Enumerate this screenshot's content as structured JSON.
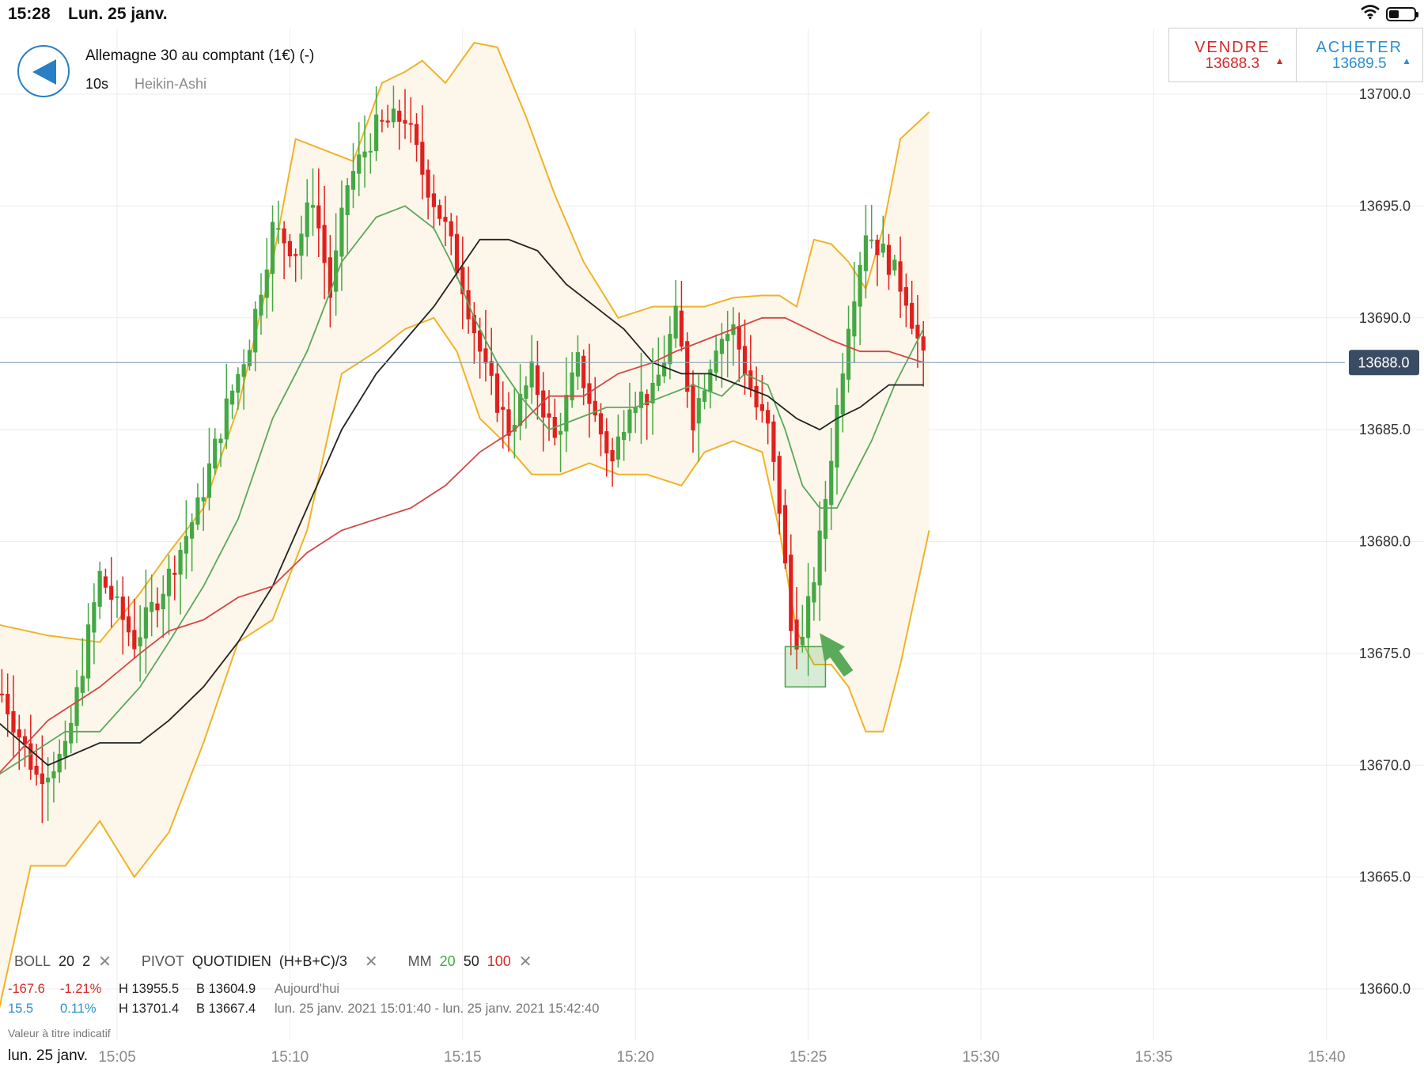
{
  "status_bar": {
    "time": "15:28",
    "date": "Lun. 25 janv.",
    "icons": [
      "wifi-icon",
      "battery-icon"
    ]
  },
  "instrument": {
    "name": "Allemagne 30 au comptant (1€) (-)",
    "interval": "10s",
    "chart_type": "Heikin-Ashi"
  },
  "trade": {
    "sell_label": "VENDRE",
    "sell_price": "13688.3",
    "sell_arrow": "▲",
    "buy_label": "ACHETER",
    "buy_price": "13689.5",
    "buy_arrow": "▲"
  },
  "current_price_label": "13688.0",
  "indicators": {
    "boll": {
      "name": "BOLL",
      "period": "20",
      "dev": "2"
    },
    "pivot": {
      "name": "PIVOT",
      "mode": "QUOTIDIEN",
      "formula": "(H+B+C)/3"
    },
    "mm": {
      "name": "MM",
      "p1": "20",
      "p2": "50",
      "p3": "100"
    },
    "close_glyph": "✕"
  },
  "stats": {
    "day": {
      "change": "-167.6",
      "pct": "-1.21%",
      "high": "H 13955.5",
      "low": "B 13604.9",
      "period": "Aujourd'hui"
    },
    "range": {
      "change": "15.5",
      "pct": "0.11%",
      "high": "H 13701.4",
      "low": "B 13667.4",
      "period": "lun. 25 janv. 2021 15:01:40 - lun. 25 janv. 2021 15:42:40"
    }
  },
  "disclaimer": "Valeur à titre indicatif",
  "current_date_label": "lun. 25 janv.",
  "colors": {
    "up": "#44a844",
    "down": "#e0201e",
    "boll": "#f0b328",
    "boll_fill": "#fdf6ea",
    "mm20": "#5aa85a",
    "mm50": "#222222",
    "mm100": "#d64545",
    "price_line": "#8fa3b5",
    "accent": "#2a7fc4"
  },
  "chart_data": {
    "type": "candlestick",
    "subtype": "Heikin-Ashi",
    "x_ticks": [
      "15:05",
      "15:10",
      "15:15",
      "15:20",
      "15:25",
      "15:30",
      "15:35",
      "15:40"
    ],
    "y_ticks": [
      "13700.0",
      "13695.0",
      "13690.0",
      "13685.0",
      "13680.0",
      "13675.0",
      "13670.0",
      "13665.0",
      "13660.0"
    ],
    "ylim": [
      13657.9,
      13702.3
    ],
    "xlim": [
      "15:01:30",
      "15:42:40"
    ],
    "grid": true,
    "current_price": 13688.0,
    "trend_close": [
      [
        "15:01:40",
        13673.2
      ],
      [
        "15:02:40",
        13669.5
      ],
      [
        "15:03:30",
        13670.5
      ],
      [
        "15:04:30",
        13678.5
      ],
      [
        "15:05:30",
        13675.5
      ],
      [
        "15:06:30",
        13678.5
      ],
      [
        "15:07:20",
        13681.5
      ],
      [
        "15:08:10",
        13686.0
      ],
      [
        "15:08:50",
        13689.0
      ],
      [
        "15:09:30",
        13694.0
      ],
      [
        "15:10:10",
        13693.0
      ],
      [
        "15:10:40",
        13695.5
      ],
      [
        "15:11:10",
        13691.0
      ],
      [
        "15:11:40",
        13696.0
      ],
      [
        "15:12:30",
        13698.5
      ],
      [
        "15:13:20",
        13699.0
      ],
      [
        "15:13:50",
        13696.5
      ],
      [
        "15:14:30",
        13694.0
      ],
      [
        "15:15:00",
        13691.5
      ],
      [
        "15:15:40",
        13687.5
      ],
      [
        "15:16:20",
        13685.0
      ],
      [
        "15:17:00",
        13687.5
      ],
      [
        "15:17:40",
        13684.5
      ],
      [
        "15:18:20",
        13688.0
      ],
      [
        "15:18:50",
        13685.5
      ],
      [
        "15:19:20",
        13683.5
      ],
      [
        "15:19:50",
        13686.5
      ],
      [
        "15:20:30",
        13686.5
      ],
      [
        "15:21:10",
        13690.0
      ],
      [
        "15:21:40",
        13685.5
      ],
      [
        "15:22:20",
        13689.0
      ],
      [
        "15:22:50",
        13689.5
      ],
      [
        "15:23:30",
        13686.0
      ],
      [
        "15:23:50",
        13685.0
      ],
      [
        "15:24:10",
        13681.5
      ],
      [
        "15:24:30",
        13676.0
      ],
      [
        "15:24:50",
        13675.5
      ],
      [
        "15:25:20",
        13680.0
      ],
      [
        "15:25:50",
        13686.0
      ],
      [
        "15:26:10",
        13690.0
      ],
      [
        "15:26:40",
        13694.0
      ],
      [
        "15:27:20",
        13692.5
      ],
      [
        "15:27:50",
        13691.0
      ],
      [
        "15:28:20",
        13688.0
      ]
    ],
    "series": [
      {
        "name": "BOLL upper",
        "x": [
          "15:01:30",
          "15:03:00",
          "15:04:30",
          "15:05:40",
          "15:06:30",
          "15:07:30",
          "15:08:30",
          "15:09:30",
          "15:10:10",
          "15:11:00",
          "15:11:50",
          "15:12:40",
          "15:13:20",
          "15:13:50",
          "15:14:30",
          "15:15:20",
          "15:16:00",
          "15:16:50",
          "15:17:40",
          "15:18:30",
          "15:19:30",
          "15:20:30",
          "15:21:10",
          "15:22:00",
          "15:22:50",
          "15:23:40",
          "15:24:10",
          "15:24:40",
          "15:25:10",
          "15:25:40",
          "15:26:10",
          "15:26:40",
          "15:27:10",
          "15:27:40",
          "15:28:30"
        ],
        "values": [
          13676.3,
          13675.8,
          13675.5,
          13677.7,
          13679.5,
          13681.5,
          13686.0,
          13692.5,
          13698.0,
          13697.5,
          13697.0,
          13700.5,
          13701.0,
          13701.5,
          13700.5,
          13702.3,
          13702.1,
          13699.0,
          13695.5,
          13692.5,
          13690.0,
          13690.5,
          13690.5,
          13690.5,
          13690.9,
          13691.0,
          13691.0,
          13690.5,
          13693.5,
          13693.3,
          13692.5,
          13691.3,
          13694.0,
          13698.0,
          13699.2
        ]
      },
      {
        "name": "BOLL lower",
        "x": [
          "15:01:30",
          "15:02:30",
          "15:03:30",
          "15:04:30",
          "15:05:30",
          "15:06:30",
          "15:07:30",
          "15:08:30",
          "15:09:30",
          "15:10:30",
          "15:11:30",
          "15:12:30",
          "15:13:20",
          "15:14:10",
          "15:14:50",
          "15:15:30",
          "15:16:10",
          "15:17:00",
          "15:17:50",
          "15:18:40",
          "15:19:30",
          "15:20:20",
          "15:21:20",
          "15:22:00",
          "15:22:50",
          "15:23:40",
          "15:24:10",
          "15:24:40",
          "15:25:10",
          "15:25:40",
          "15:26:10",
          "15:26:40",
          "15:27:10",
          "15:27:40",
          "15:28:30"
        ],
        "values": [
          13658.5,
          13665.5,
          13665.5,
          13667.5,
          13665.0,
          13667.0,
          13671.0,
          13675.5,
          13676.5,
          13680.5,
          13687.5,
          13688.5,
          13689.5,
          13690.0,
          13688.5,
          13685.5,
          13684.5,
          13683.0,
          13683.0,
          13683.5,
          13683.0,
          13683.0,
          13682.5,
          13684.0,
          13684.5,
          13684.0,
          13680.5,
          13676.0,
          13674.5,
          13674.5,
          13673.5,
          13671.5,
          13671.5,
          13674.5,
          13680.5
        ]
      },
      {
        "name": "MM 20",
        "x": [
          "15:01:30",
          "15:02:30",
          "15:03:30",
          "15:04:30",
          "15:05:40",
          "15:06:30",
          "15:07:30",
          "15:08:30",
          "15:09:30",
          "15:10:30",
          "15:11:30",
          "15:12:30",
          "15:13:20",
          "15:14:10",
          "15:14:40",
          "15:15:20",
          "15:16:00",
          "15:16:40",
          "15:17:30",
          "15:18:20",
          "15:19:10",
          "15:20:00",
          "15:20:50",
          "15:21:40",
          "15:22:30",
          "15:23:10",
          "15:23:50",
          "15:24:20",
          "15:24:50",
          "15:25:20",
          "15:25:50",
          "15:26:20",
          "15:26:50",
          "15:27:30",
          "15:28:20"
        ],
        "values": [
          13669.5,
          13670.5,
          13671.5,
          13671.5,
          13673.5,
          13675.5,
          13678.0,
          13681.0,
          13685.5,
          13688.5,
          13692.5,
          13694.5,
          13695.0,
          13694.0,
          13692.5,
          13690.0,
          13688.0,
          13686.5,
          13685.0,
          13685.5,
          13686.0,
          13686.0,
          13686.5,
          13687.0,
          13686.5,
          13687.5,
          13687.0,
          13685.0,
          13682.5,
          13681.5,
          13681.5,
          13683.0,
          13684.5,
          13687.0,
          13689.5
        ]
      },
      {
        "name": "MM 50",
        "x": [
          "15:01:30",
          "15:03:00",
          "15:04:30",
          "15:05:40",
          "15:06:30",
          "15:07:30",
          "15:08:30",
          "15:09:30",
          "15:10:30",
          "15:11:30",
          "15:12:30",
          "15:13:20",
          "15:14:10",
          "15:14:50",
          "15:15:30",
          "15:16:20",
          "15:17:10",
          "15:18:00",
          "15:18:50",
          "15:19:40",
          "15:20:30",
          "15:21:20",
          "15:22:10",
          "15:23:00",
          "15:23:50",
          "15:24:40",
          "15:25:20",
          "15:25:50",
          "15:26:30",
          "15:27:20",
          "15:28:20"
        ],
        "values": [
          13672.0,
          13670.0,
          13671.0,
          13671.0,
          13672.0,
          13673.5,
          13675.5,
          13678.0,
          13681.5,
          13685.0,
          13687.5,
          13689.0,
          13690.5,
          13692.0,
          13693.5,
          13693.5,
          13693.0,
          13691.5,
          13690.5,
          13689.5,
          13688.0,
          13687.5,
          13687.5,
          13687.0,
          13686.5,
          13685.5,
          13685.0,
          13685.5,
          13686.0,
          13687.0,
          13687.0
        ]
      },
      {
        "name": "MM 100",
        "x": [
          "15:01:30",
          "15:03:00",
          "15:04:30",
          "15:05:40",
          "15:06:30",
          "15:07:30",
          "15:08:30",
          "15:09:30",
          "15:10:30",
          "15:11:30",
          "15:12:30",
          "15:13:30",
          "15:14:30",
          "15:15:30",
          "15:16:30",
          "15:17:30",
          "15:18:30",
          "15:19:30",
          "15:20:30",
          "15:21:10",
          "15:22:00",
          "15:22:50",
          "15:23:40",
          "15:24:20",
          "15:25:00",
          "15:25:40",
          "15:26:30",
          "15:27:20",
          "15:28:20"
        ],
        "values": [
          13669.5,
          13672.0,
          13673.5,
          13675.0,
          13676.0,
          13676.5,
          13677.5,
          13678.0,
          13679.5,
          13680.5,
          13681.0,
          13681.5,
          13682.5,
          13684.0,
          13685.0,
          13686.5,
          13686.5,
          13687.5,
          13688.0,
          13688.5,
          13689.0,
          13689.5,
          13690.0,
          13690.0,
          13689.5,
          13689.0,
          13688.5,
          13688.5,
          13688.0
        ]
      }
    ],
    "annotations": [
      {
        "type": "box",
        "label": "",
        "x_range": [
          "15:24:20",
          "15:25:30"
        ],
        "y_range": [
          13673.5,
          13675.3
        ]
      },
      {
        "type": "arrow",
        "label": "",
        "from": [
          "15:26:10",
          13674.1
        ],
        "to": [
          "15:25:20",
          13675.9
        ]
      }
    ]
  }
}
